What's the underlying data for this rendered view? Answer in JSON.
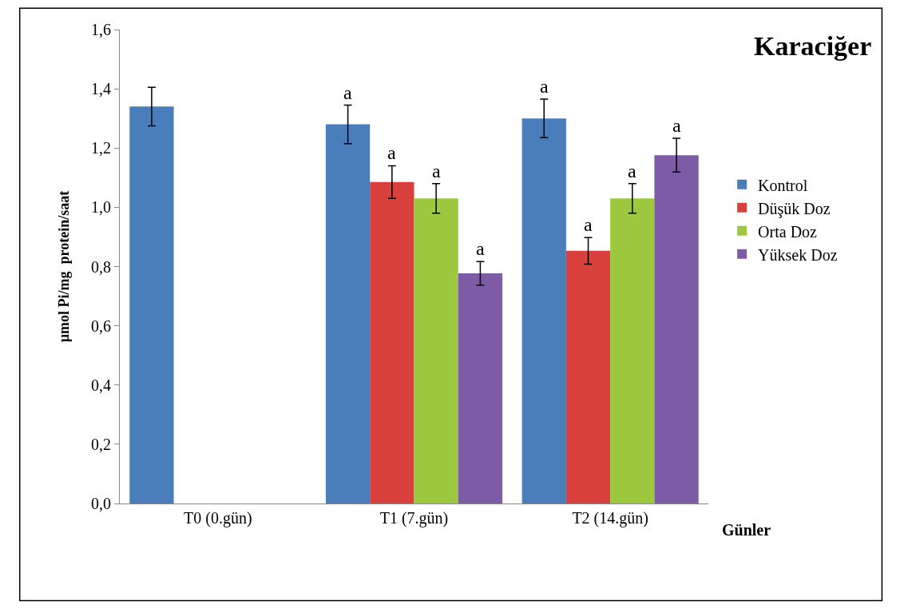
{
  "chart_data": {
    "type": "bar",
    "title": "Karaciğer",
    "xlabel": "Günler",
    "ylabel": "µmol Pi/mg  protein/saat",
    "categories": [
      "T0 (0.gün)",
      "T1 (7.gün)",
      "T2 (14.gün)"
    ],
    "series": [
      {
        "name": "Kontrol",
        "color": "#4a7ebb",
        "values": [
          1.34,
          1.28,
          1.3
        ],
        "errors": [
          0.065,
          0.065,
          0.065
        ],
        "value_labels": [
          null,
          "a",
          "a"
        ]
      },
      {
        "name": "Düşük Doz",
        "color": "#d9403b",
        "values": [
          null,
          1.085,
          0.853
        ],
        "errors": [
          null,
          0.055,
          0.045
        ],
        "value_labels": [
          null,
          "a",
          "a"
        ]
      },
      {
        "name": "Orta Doz",
        "color": "#9bc83f",
        "values": [
          null,
          1.03,
          1.03
        ],
        "errors": [
          null,
          0.05,
          0.05
        ],
        "value_labels": [
          null,
          "a",
          "a"
        ]
      },
      {
        "name": "Yüksek Doz",
        "color": "#7d5ba6",
        "values": [
          null,
          0.777,
          1.176
        ],
        "errors": [
          null,
          0.04,
          0.057
        ],
        "value_labels": [
          null,
          "a",
          "a"
        ]
      }
    ],
    "ylim": [
      0,
      1.6
    ],
    "yticks": [
      {
        "value": 0,
        "label": "0,0"
      },
      {
        "value": 0.2,
        "label": "0,2"
      },
      {
        "value": 0.4,
        "label": "0,4"
      },
      {
        "value": 0.6,
        "label": "0,6"
      },
      {
        "value": 0.8,
        "label": "0,8"
      },
      {
        "value": 1.0,
        "label": "1,0"
      },
      {
        "value": 1.2,
        "label": "1,2"
      },
      {
        "value": 1.4,
        "label": "1,4"
      },
      {
        "value": 1.6,
        "label": "1,6"
      }
    ],
    "legend": "right"
  }
}
